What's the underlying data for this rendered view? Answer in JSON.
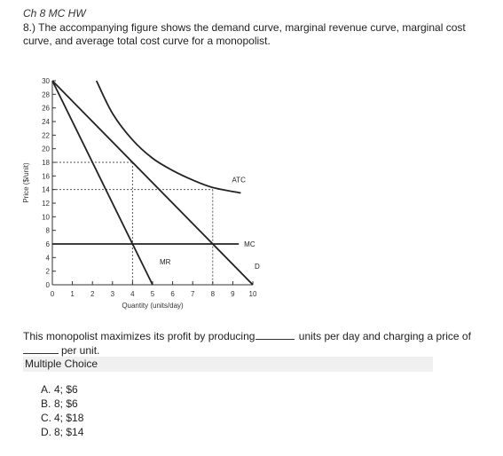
{
  "header": "Ch 8 MC HW",
  "question": "8.) The accompanying figure shows the demand curve, marginal revenue curve, marginal cost curve, and average total cost curve for a monopolist.",
  "stem": {
    "part1": "This monopolist maximizes its profit by producing",
    "part2": "units per day and charging a price of",
    "part3": "per unit."
  },
  "multiple_choice_label": "Multiple Choice",
  "options": [
    {
      "letter": "A.",
      "text": "4; $6"
    },
    {
      "letter": "B.",
      "text": "8; $6"
    },
    {
      "letter": "C.",
      "text": "4; $18"
    },
    {
      "letter": "D.",
      "text": "8; $14"
    }
  ],
  "chart_data": {
    "type": "line",
    "xlabel": "Quantity (units/day)",
    "ylabel": "Price ($/unit)",
    "xlim": [
      0,
      10
    ],
    "ylim": [
      0,
      30
    ],
    "x_ticks": [
      0,
      1,
      2,
      3,
      4,
      5,
      6,
      7,
      8,
      9,
      10
    ],
    "y_ticks": [
      0,
      2,
      4,
      6,
      8,
      10,
      12,
      14,
      16,
      18,
      20,
      22,
      24,
      26,
      28,
      30
    ],
    "series": [
      {
        "name": "D",
        "x": [
          0,
          10
        ],
        "y": [
          30,
          0
        ]
      },
      {
        "name": "MR",
        "x": [
          0,
          5
        ],
        "y": [
          30,
          0
        ]
      },
      {
        "name": "MC",
        "x": [
          0,
          9.3
        ],
        "y": [
          6,
          6
        ]
      },
      {
        "name": "ATC",
        "x": [
          2.2,
          3,
          4,
          5,
          6,
          7,
          8,
          9.4
        ],
        "y": [
          30,
          25.2,
          21.3,
          18.6,
          16.8,
          15.4,
          14.3,
          13.5
        ]
      }
    ],
    "reference_lines": [
      {
        "x": 4,
        "y": 18
      },
      {
        "x": 8,
        "y": 14
      }
    ],
    "grid": false
  }
}
